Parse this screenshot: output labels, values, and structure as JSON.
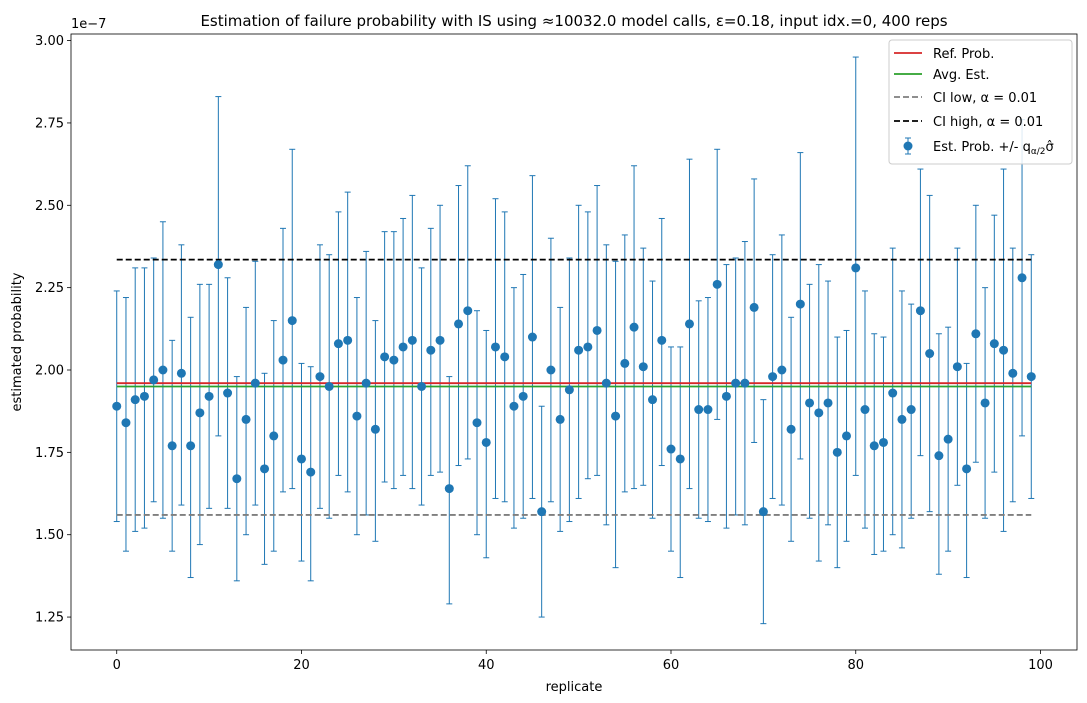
{
  "chart_data": {
    "type": "scatter",
    "title": "Estimation of failure probability with IS using  ≈10032.0 model calls, ε=0.18, input idx.=0, 400 reps",
    "xlabel": "replicate",
    "ylabel": "estimated probability",
    "y_scale_label": "1e−7",
    "y_scale": 1e-07,
    "xlim": [
      -4.95,
      103.95
    ],
    "ylim": [
      1.15,
      3.02
    ],
    "x_ticks": [
      0,
      20,
      40,
      60,
      80,
      100
    ],
    "x_tick_labels": [
      "0",
      "20",
      "40",
      "60",
      "80",
      "100"
    ],
    "y_ticks": [
      1.25,
      1.5,
      1.75,
      2.0,
      2.25,
      2.5,
      2.75,
      3.0
    ],
    "y_tick_labels": [
      "1.25",
      "1.50",
      "1.75",
      "2.00",
      "2.25",
      "2.50",
      "2.75",
      "3.00"
    ],
    "grid": false,
    "legend_position": "top-right",
    "colors": {
      "estimates": "#1f77b4",
      "ref": "#d62728",
      "avg": "#2ca02c",
      "ci_low": "#7f7f7f",
      "ci_high": "#000000"
    },
    "hlines": {
      "ref_prob": 1.96,
      "avg_est": 1.95,
      "ci_low": 1.56,
      "ci_high": 2.335,
      "x_range": [
        0,
        99
      ]
    },
    "legend": [
      {
        "key": "ref",
        "label": "Ref. Prob.",
        "style": "solid"
      },
      {
        "key": "avg",
        "label": "Avg. Est.",
        "style": "solid"
      },
      {
        "key": "ci_low",
        "label": "CI low, α = 0.01",
        "style": "dashed"
      },
      {
        "key": "ci_high",
        "label": "CI high, α = 0.01",
        "style": "dashed"
      },
      {
        "key": "estimates",
        "label": "Est. Prob. +/- q",
        "sub": "α/2",
        "hat": "σ̂",
        "style": "errorbar"
      }
    ],
    "series": [
      {
        "name": "Est. Prob. +/- q α/2 σ̂",
        "x": [
          0,
          1,
          2,
          3,
          4,
          5,
          6,
          7,
          8,
          9,
          10,
          11,
          12,
          13,
          14,
          15,
          16,
          17,
          18,
          19,
          20,
          21,
          22,
          23,
          24,
          25,
          26,
          27,
          28,
          29,
          30,
          31,
          32,
          33,
          34,
          35,
          36,
          37,
          38,
          39,
          40,
          41,
          42,
          43,
          44,
          45,
          46,
          47,
          48,
          49,
          50,
          51,
          52,
          53,
          54,
          55,
          56,
          57,
          58,
          59,
          60,
          61,
          62,
          63,
          64,
          65,
          66,
          67,
          68,
          69,
          70,
          71,
          72,
          73,
          74,
          75,
          76,
          77,
          78,
          79,
          80,
          81,
          82,
          83,
          84,
          85,
          86,
          87,
          88,
          89,
          90,
          91,
          92,
          93,
          94,
          95,
          96,
          97,
          98,
          99
        ],
        "y": [
          1.89,
          1.84,
          1.91,
          1.92,
          1.97,
          2.0,
          1.77,
          1.99,
          1.77,
          1.87,
          1.92,
          2.32,
          1.93,
          1.67,
          1.85,
          1.96,
          1.7,
          1.8,
          2.03,
          2.15,
          1.73,
          1.69,
          1.98,
          1.95,
          2.08,
          2.09,
          1.86,
          1.96,
          1.82,
          2.04,
          2.03,
          2.07,
          2.09,
          1.95,
          2.06,
          2.09,
          1.64,
          2.14,
          2.18,
          1.84,
          1.78,
          2.07,
          2.04,
          1.89,
          1.92,
          2.1,
          1.57,
          2.0,
          1.85,
          1.94,
          2.06,
          2.07,
          2.12,
          1.96,
          1.86,
          2.02,
          2.13,
          2.01,
          1.91,
          2.09,
          1.76,
          1.73,
          2.14,
          1.88,
          1.88,
          2.26,
          1.92,
          1.96,
          1.96,
          2.19,
          1.57,
          1.98,
          2.0,
          1.82,
          2.2,
          1.9,
          1.87,
          1.9,
          1.75,
          1.8,
          2.31,
          1.88,
          1.77,
          1.78,
          1.93,
          1.85,
          1.88,
          2.18,
          2.05,
          1.74,
          1.79,
          2.01,
          1.7,
          2.11,
          1.9,
          2.08,
          2.06,
          1.99,
          2.28,
          1.98
        ],
        "lower": [
          1.54,
          1.45,
          1.51,
          1.52,
          1.6,
          1.55,
          1.45,
          1.59,
          1.37,
          1.47,
          1.58,
          1.8,
          1.58,
          1.36,
          1.5,
          1.59,
          1.41,
          1.45,
          1.63,
          1.64,
          1.42,
          1.36,
          1.58,
          1.55,
          1.68,
          1.63,
          1.5,
          1.56,
          1.48,
          1.66,
          1.64,
          1.68,
          1.64,
          1.59,
          1.68,
          1.69,
          1.29,
          1.71,
          1.73,
          1.5,
          1.43,
          1.61,
          1.6,
          1.52,
          1.55,
          1.61,
          1.25,
          1.6,
          1.51,
          1.54,
          1.61,
          1.67,
          1.68,
          1.53,
          1.4,
          1.63,
          1.64,
          1.65,
          1.55,
          1.71,
          1.45,
          1.37,
          1.64,
          1.55,
          1.54,
          1.85,
          1.52,
          1.56,
          1.53,
          1.78,
          1.23,
          1.61,
          1.59,
          1.48,
          1.73,
          1.55,
          1.42,
          1.53,
          1.4,
          1.48,
          1.68,
          1.52,
          1.44,
          1.45,
          1.5,
          1.46,
          1.55,
          1.74,
          1.57,
          1.38,
          1.45,
          1.65,
          1.37,
          1.72,
          1.55,
          1.69,
          1.51,
          1.6,
          1.8,
          1.61
        ],
        "upper": [
          2.24,
          2.22,
          2.31,
          2.31,
          2.34,
          2.45,
          2.09,
          2.38,
          2.16,
          2.26,
          2.26,
          2.83,
          2.28,
          1.98,
          2.19,
          2.33,
          1.99,
          2.15,
          2.43,
          2.67,
          2.02,
          2.01,
          2.38,
          2.35,
          2.48,
          2.54,
          2.22,
          2.36,
          2.15,
          2.42,
          2.42,
          2.46,
          2.53,
          2.31,
          2.43,
          2.5,
          1.98,
          2.56,
          2.62,
          2.18,
          2.12,
          2.52,
          2.48,
          2.25,
          2.29,
          2.59,
          1.89,
          2.4,
          2.19,
          2.34,
          2.5,
          2.48,
          2.56,
          2.38,
          2.33,
          2.41,
          2.62,
          2.37,
          2.27,
          2.46,
          2.07,
          2.07,
          2.64,
          2.21,
          2.22,
          2.67,
          2.32,
          2.34,
          2.39,
          2.58,
          1.91,
          2.35,
          2.41,
          2.16,
          2.66,
          2.26,
          2.32,
          2.27,
          2.1,
          2.12,
          2.95,
          2.24,
          2.11,
          2.1,
          2.37,
          2.24,
          2.2,
          2.61,
          2.53,
          2.11,
          2.13,
          2.37,
          2.02,
          2.5,
          2.25,
          2.47,
          2.61,
          2.37,
          2.76,
          2.35
        ]
      }
    ]
  }
}
